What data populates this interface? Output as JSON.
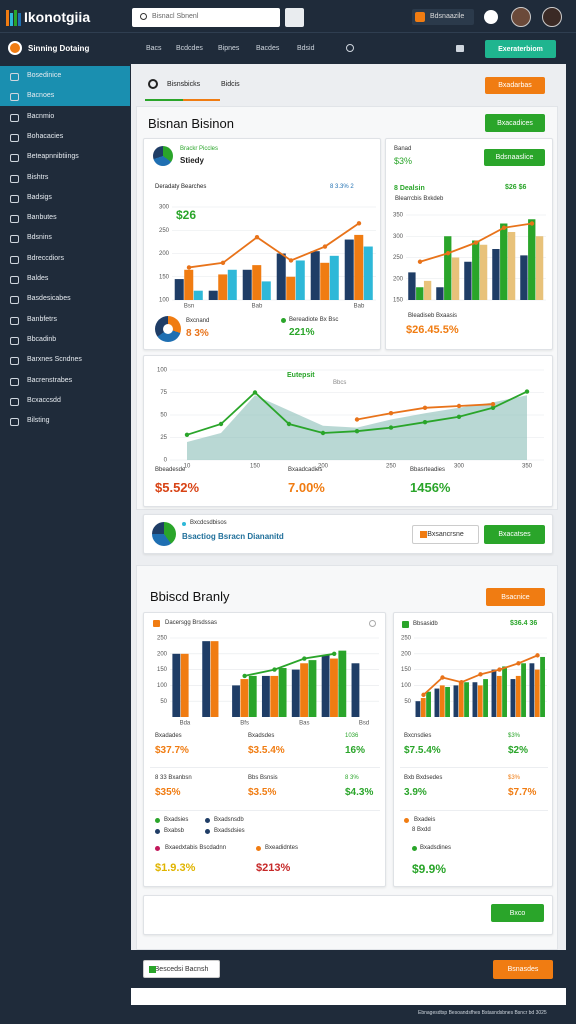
{
  "topbar": {
    "brand": "Ikonotgiia",
    "search": "Bisnacl Sbnenl",
    "badge": "Bdsnaazile"
  },
  "navbar": {
    "title": "Sinning Dotaing",
    "links": [
      "Bacs",
      "Bcdcdes",
      "Bipnes",
      "Bacdes",
      "Bdsid"
    ],
    "button": "Exeraterbiom"
  },
  "sidebar": [
    "Bosedinice",
    "Bacnoes",
    "Bacnmio",
    "Bohacacies",
    "Beteapnnibtiings",
    "Bishtrs",
    "Badsigs",
    "Banbutes",
    "Bdsnins",
    "Bdreccdiors",
    "Baldes",
    "Basdesicabes",
    "Banbfetrs",
    "Bbcadinb",
    "Barxnes Scndnes",
    "Bacrenstrabes",
    "Bcxaccsdd",
    "Bilsting"
  ],
  "tabs": [
    "Bisnsbicks",
    "Bidcis"
  ],
  "tabs_button": "Bxadarbas",
  "section1": {
    "title": "Bisnan Bisinon",
    "button": "Bxacadices"
  },
  "panel_a": {
    "kicker": "Brackr Piccles",
    "title": "Stiedy",
    "legend": "Deradaty Bearches",
    "legend_value": "8 3.3% 2",
    "headline": "$26",
    "chart": {
      "type": "bar",
      "categories": [
        "Bsn",
        null,
        "Bab",
        null,
        null,
        "Bab"
      ],
      "ylim": [
        100,
        300
      ],
      "yticks": [
        100,
        150,
        200,
        250,
        300
      ],
      "series": [
        {
          "type": "bar",
          "color": "#1f3d66",
          "values": [
            145,
            120,
            165,
            200,
            205,
            230
          ]
        },
        {
          "type": "bar",
          "color": "#f07c12",
          "values": [
            165,
            155,
            175,
            150,
            180,
            240
          ]
        },
        {
          "type": "bar",
          "color": "#2eb8d8",
          "values": [
            120,
            165,
            140,
            185,
            195,
            215
          ]
        },
        {
          "type": "line",
          "color": "#e8731a",
          "values": [
            170,
            180,
            235,
            185,
            215,
            265
          ]
        }
      ]
    },
    "footer": [
      {
        "label": "Bxcnand",
        "value": "8 3%",
        "color": "#e8731a"
      },
      {
        "label": "Bereadiote Bx Bsc",
        "value": "221%",
        "color": "#2aa52a"
      }
    ]
  },
  "panel_b": {
    "kicker": "Banad",
    "value": "$3%",
    "button": "Bdsnaaslice",
    "legend": "8 Dealsin",
    "legend_value": "$26 $6",
    "sub": "Blearrcbis Bxkdeb",
    "chart": {
      "type": "bar",
      "categories": [
        null,
        null,
        null,
        null,
        null
      ],
      "ylim": [
        150,
        350
      ],
      "yticks": [
        150,
        200,
        250,
        300,
        350
      ],
      "series": [
        {
          "type": "bar",
          "color": "#1f3d66",
          "values": [
            215,
            180,
            240,
            270,
            255
          ]
        },
        {
          "type": "bar",
          "color": "#2aa52a",
          "values": [
            180,
            300,
            290,
            330,
            340
          ]
        },
        {
          "type": "bar",
          "color": "#e8c27a",
          "values": [
            195,
            250,
            280,
            310,
            300
          ]
        },
        {
          "type": "line",
          "color": "#e8731a",
          "values": [
            240,
            260,
            285,
            320,
            330
          ]
        }
      ]
    },
    "footer_label": "Bleadiseb Bxaasis",
    "footer_value": "$26.45.5%"
  },
  "panel_c": {
    "title": "Eutepsit",
    "sub": "Bbcs",
    "chart": {
      "type": "area",
      "categories": [
        "10",
        null,
        "150",
        null,
        "200",
        null,
        "250",
        null,
        "300",
        null,
        "350"
      ],
      "ylim": [
        0,
        100
      ],
      "yticks": [
        0,
        25,
        50,
        75,
        100
      ],
      "series": [
        {
          "type": "area",
          "color": "#7fb8b0",
          "values": [
            20,
            30,
            72,
            55,
            38,
            36,
            45,
            52,
            58,
            64,
            72
          ]
        },
        {
          "type": "line",
          "color": "#2aa52a",
          "values": [
            28,
            40,
            75,
            40,
            30,
            32,
            36,
            42,
            48,
            58,
            76
          ]
        },
        {
          "type": "line",
          "color": "#e8731a",
          "values": [
            null,
            null,
            null,
            null,
            null,
            45,
            52,
            58,
            60,
            62,
            null
          ]
        }
      ]
    },
    "stats": [
      {
        "label": "Bbeadesde",
        "value": "$5.52%",
        "color": "#d84315"
      },
      {
        "label": "Bxaadcadies",
        "value": "7.00%",
        "color": "#f07c12"
      },
      {
        "label": "Bbasrteadies",
        "value": "1456%",
        "color": "#2aa52a"
      }
    ]
  },
  "panel_d": {
    "kicker": "Bxcdcsdbisos",
    "title": "Bsactiog Bsracn Diananitd",
    "button1": "Bxsancrsne",
    "button2": "Bxacatses"
  },
  "section2": {
    "title": "Bbiscd Branly",
    "button": "Bsacnice"
  },
  "panel_e": {
    "title": "Dacersgg Brsdssas",
    "chart": {
      "type": "bar",
      "categories": [
        "Bda",
        null,
        "Bfs",
        null,
        "Bas",
        null,
        "Bsd"
      ],
      "ylim": [
        0,
        250
      ],
      "yticks": [
        50,
        100,
        150,
        200,
        250
      ],
      "series": [
        {
          "type": "bar",
          "color": "#1f3d66",
          "values": [
            200,
            240,
            100,
            130,
            150,
            195,
            170
          ]
        },
        {
          "type": "bar",
          "color": "#f07c12",
          "values": [
            200,
            240,
            120,
            130,
            170,
            185,
            0
          ]
        },
        {
          "type": "bar",
          "color": "#2aa52a",
          "values": [
            0,
            0,
            130,
            155,
            180,
            210,
            0
          ]
        },
        {
          "type": "line",
          "color": "#2aa52a",
          "values": [
            null,
            null,
            130,
            150,
            185,
            200,
            null
          ]
        }
      ]
    },
    "stats": [
      {
        "label": "Bxadades",
        "value": "$37.7%",
        "color": "#f07c12"
      },
      {
        "label": "Bxadsdes",
        "value": "$3.5.4%",
        "color": "#f07c12"
      },
      {
        "label": "1036",
        "value": "16%",
        "color": "#2aa52a"
      },
      {
        "label": "8 33 Bxanbsn",
        "value": "$35%",
        "color": "#f07c12"
      },
      {
        "label": "Bbs Bsnsis",
        "value": "$3.5%",
        "color": "#f07c12"
      },
      {
        "label": "8 3%",
        "value": "$4.3%",
        "color": "#2aa52a"
      }
    ],
    "legend": [
      "Bxadsies",
      "Bxadsnsdb",
      "Bxabsb",
      "Bxadsdsies"
    ],
    "bottom": [
      {
        "label": "Bxaedxtabis Bscdadnn",
        "value": "$1.9.3%",
        "color": "#e0b400"
      },
      {
        "label": "Bxeadidntes",
        "value": "$213%",
        "color": "#c62828"
      }
    ]
  },
  "panel_f": {
    "kicker": "Bbsasidb",
    "value": "$36.4 36",
    "chart": {
      "type": "bar",
      "categories": [
        null,
        null,
        null,
        null,
        null,
        null,
        null
      ],
      "ylim": [
        0,
        250
      ],
      "yticks": [
        50,
        100,
        150,
        200,
        250
      ],
      "series": [
        {
          "type": "bar",
          "color": "#1f3d66",
          "values": [
            50,
            90,
            100,
            110,
            150,
            120,
            170
          ]
        },
        {
          "type": "bar",
          "color": "#f07c12",
          "values": [
            60,
            100,
            110,
            100,
            130,
            130,
            150
          ]
        },
        {
          "type": "bar",
          "color": "#2aa52a",
          "values": [
            80,
            95,
            110,
            120,
            160,
            170,
            190
          ]
        },
        {
          "type": "line",
          "color": "#e8731a",
          "values": [
            70,
            125,
            110,
            135,
            150,
            170,
            195
          ]
        }
      ]
    },
    "stats": [
      {
        "label": "Bxcnsdies",
        "value": "$7.5.4%",
        "color": "#2aa52a"
      },
      {
        "label": "$3%",
        "value": "$2%",
        "color": "#2aa52a"
      },
      {
        "label": "Bxb Bxdsedes",
        "value": "3.9%",
        "color": "#2aa52a"
      },
      {
        "label": "$3%",
        "value": "$7.7%",
        "color": "#f07c12"
      }
    ],
    "legend": [
      "Bxadeis",
      "8 Bxdd",
      "Bxadsdines"
    ],
    "bottom_value": "$9.9%"
  },
  "panel_g": {
    "button": "Bxco"
  },
  "footer": {
    "button1": "Bescedsi Bacnsh",
    "button2": "Bsnasdes",
    "note": "Ebnagesdtsp Besoandsfhes Bstasndsbnes Bsncr bd 3025"
  }
}
